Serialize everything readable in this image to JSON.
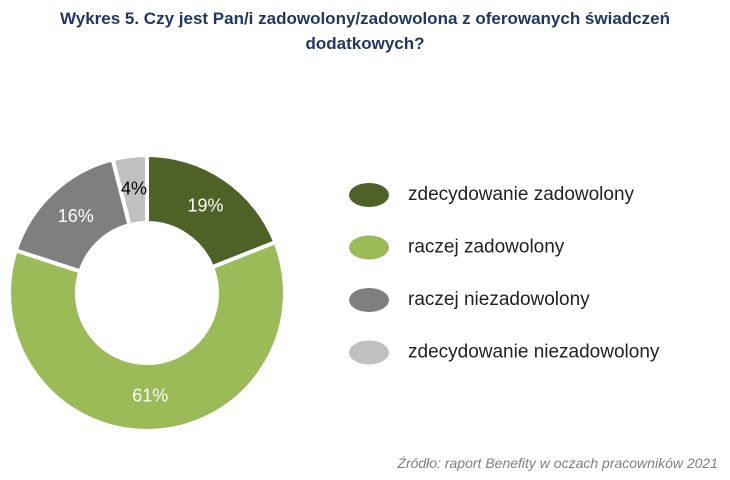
{
  "chart_data": {
    "type": "donut",
    "title": "Wykres 5. Czy jest Pan/i zadowolony/zadowolona z oferowanych świadczeń dodatkowych?",
    "categories": [
      "zdecydowanie zadowolony",
      "raczej zadowolony",
      "raczej niezadowolony",
      "zdecydowanie niezadowolony"
    ],
    "values": [
      19,
      61,
      16,
      4
    ],
    "value_labels": [
      "19%",
      "61%",
      "16%",
      "4%"
    ],
    "colors": [
      "#4e6228",
      "#9bbb59",
      "#7f7f7f",
      "#c0c0c0"
    ],
    "legend": "right",
    "source": "Źródło: raport Benefity w oczach pracowników 2021"
  }
}
